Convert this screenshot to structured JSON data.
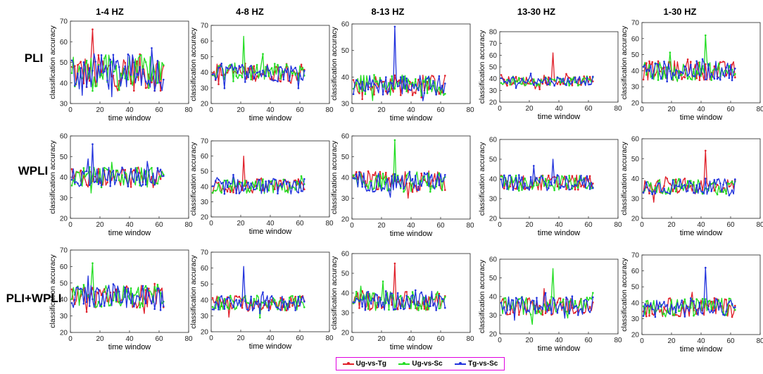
{
  "chart_data": {
    "type": "line",
    "column_headers": [
      "1-4 HZ",
      "4-8 HZ",
      "8-13 HZ",
      "13-30 HZ",
      "1-30 HZ"
    ],
    "row_headers": [
      "PLI",
      "WPLI",
      "PLI+WPLI"
    ],
    "xlabel": "time window",
    "ylabel": "classification accuracy",
    "xlim": [
      0,
      80
    ],
    "x_ticks": [
      0,
      20,
      40,
      60,
      80
    ],
    "series_names": [
      "Ug-vs-Tg",
      "Ug-vs-Sc",
      "Tg-vs-Sc"
    ],
    "series_colors": [
      "#e0202a",
      "#22dd22",
      "#2233dd"
    ],
    "points_per_series": 63,
    "panels": [
      {
        "row": "PLI",
        "column": "1-4 HZ",
        "ylim": [
          30,
          70
        ],
        "y_ticks": [
          30,
          40,
          50,
          60,
          70
        ],
        "mean": 45,
        "spread": 9,
        "peak": 66
      },
      {
        "row": "PLI",
        "column": "4-8 HZ",
        "ylim": [
          20,
          70
        ],
        "y_ticks": [
          20,
          30,
          40,
          50,
          60,
          70
        ],
        "mean": 40,
        "spread": 6,
        "peak": 63
      },
      {
        "row": "PLI",
        "column": "8-13 HZ",
        "ylim": [
          30,
          60
        ],
        "y_ticks": [
          30,
          40,
          50,
          60
        ],
        "mean": 37,
        "spread": 4,
        "peak": 59
      },
      {
        "row": "PLI",
        "column": "13-30 HZ",
        "ylim": [
          20,
          80
        ],
        "y_ticks": [
          20,
          30,
          40,
          50,
          60,
          70,
          80
        ],
        "mean": 38,
        "spread": 4,
        "peak": 62
      },
      {
        "row": "PLI",
        "column": "1-30 HZ",
        "ylim": [
          20,
          70
        ],
        "y_ticks": [
          20,
          30,
          40,
          50,
          60,
          70
        ],
        "mean": 40,
        "spread": 6,
        "peak": 62
      },
      {
        "row": "WPLI",
        "column": "1-4 HZ",
        "ylim": [
          20,
          60
        ],
        "y_ticks": [
          20,
          30,
          40,
          50,
          60
        ],
        "mean": 40,
        "spread": 5,
        "peak": 56
      },
      {
        "row": "WPLI",
        "column": "4-8 HZ",
        "ylim": [
          20,
          70
        ],
        "y_ticks": [
          20,
          30,
          40,
          50,
          60,
          70
        ],
        "mean": 40,
        "spread": 5,
        "peak": 60
      },
      {
        "row": "WPLI",
        "column": "8-13 HZ",
        "ylim": [
          20,
          60
        ],
        "y_ticks": [
          20,
          30,
          40,
          50,
          60
        ],
        "mean": 38,
        "spread": 5,
        "peak": 58
      },
      {
        "row": "WPLI",
        "column": "13-30 HZ",
        "ylim": [
          20,
          60
        ],
        "y_ticks": [
          20,
          30,
          40,
          50,
          60
        ],
        "mean": 38,
        "spread": 4,
        "peak": 50
      },
      {
        "row": "WPLI",
        "column": "1-30 HZ",
        "ylim": [
          20,
          60
        ],
        "y_ticks": [
          20,
          30,
          40,
          50,
          60
        ],
        "mean": 36,
        "spread": 4,
        "peak": 54
      },
      {
        "row": "PLI+WPLI",
        "column": "1-4 HZ",
        "ylim": [
          20,
          70
        ],
        "y_ticks": [
          20,
          30,
          40,
          50,
          60,
          70
        ],
        "mean": 42,
        "spread": 7,
        "peak": 62
      },
      {
        "row": "PLI+WPLI",
        "column": "4-8 HZ",
        "ylim": [
          20,
          70
        ],
        "y_ticks": [
          20,
          30,
          40,
          50,
          60,
          70
        ],
        "mean": 38,
        "spread": 5,
        "peak": 61
      },
      {
        "row": "PLI+WPLI",
        "column": "8-13 HZ",
        "ylim": [
          20,
          60
        ],
        "y_ticks": [
          20,
          30,
          40,
          50,
          60
        ],
        "mean": 36,
        "spread": 5,
        "peak": 55
      },
      {
        "row": "PLI+WPLI",
        "column": "13-30 HZ",
        "ylim": [
          20,
          60
        ],
        "y_ticks": [
          20,
          30,
          40,
          50,
          60
        ],
        "mean": 35,
        "spread": 5,
        "peak": 55
      },
      {
        "row": "PLI+WPLI",
        "column": "1-30 HZ",
        "ylim": [
          20,
          70
        ],
        "y_ticks": [
          20,
          30,
          40,
          50,
          60,
          70
        ],
        "mean": 37,
        "spread": 6,
        "peak": 62
      }
    ]
  },
  "legend": {
    "entries": [
      "Ug-vs-Tg",
      "Ug-vs-Sc",
      "Tg-vs-Sc"
    ]
  }
}
